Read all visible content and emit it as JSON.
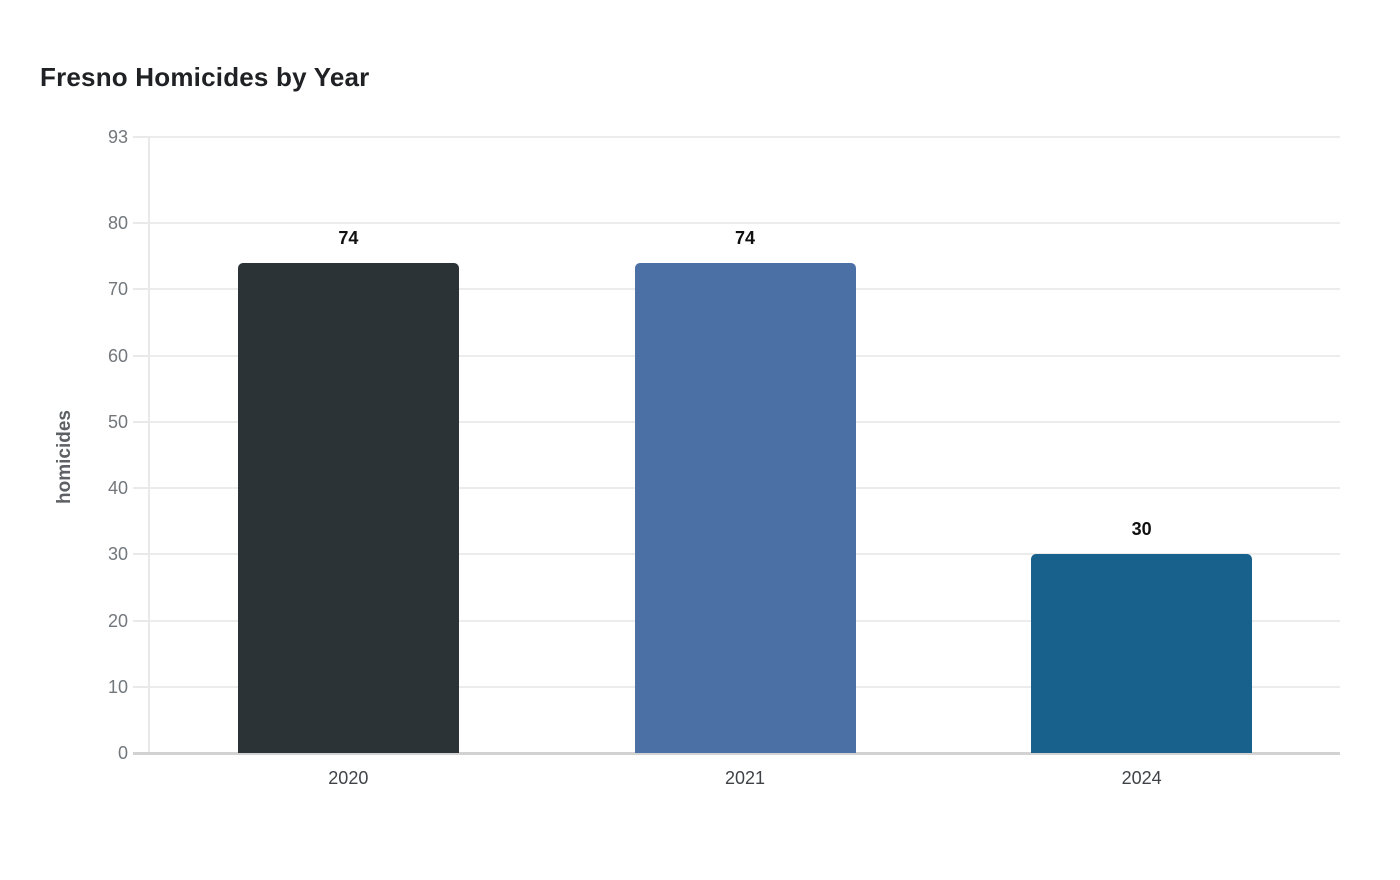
{
  "chart_data": {
    "type": "bar",
    "title": "Fresno Homicides by Year",
    "xlabel": "",
    "ylabel": "homicides",
    "categories": [
      "2020",
      "2021",
      "2024"
    ],
    "values": [
      74,
      74,
      30
    ],
    "value_labels": [
      "74",
      "74",
      "30"
    ],
    "bar_colors": [
      "#2b3336",
      "#4b70a6",
      "#17618c"
    ],
    "yticks": [
      0,
      10,
      20,
      30,
      40,
      50,
      60,
      70,
      80,
      93
    ],
    "ylim": [
      0,
      93
    ],
    "grid": "horizontal-gridlines-on",
    "legend": "none"
  },
  "colors": {
    "background": "#ffffff",
    "title_text": "#1f2124",
    "y_axis_title_text": "#5d6165",
    "y_tick_label_text": "#72777c",
    "x_tick_label_text": "#3f4347",
    "value_label_text": "#111111",
    "gridline": "#ececec",
    "axis_line": "#e9e9e9",
    "baseline": "#d2d2d2"
  }
}
